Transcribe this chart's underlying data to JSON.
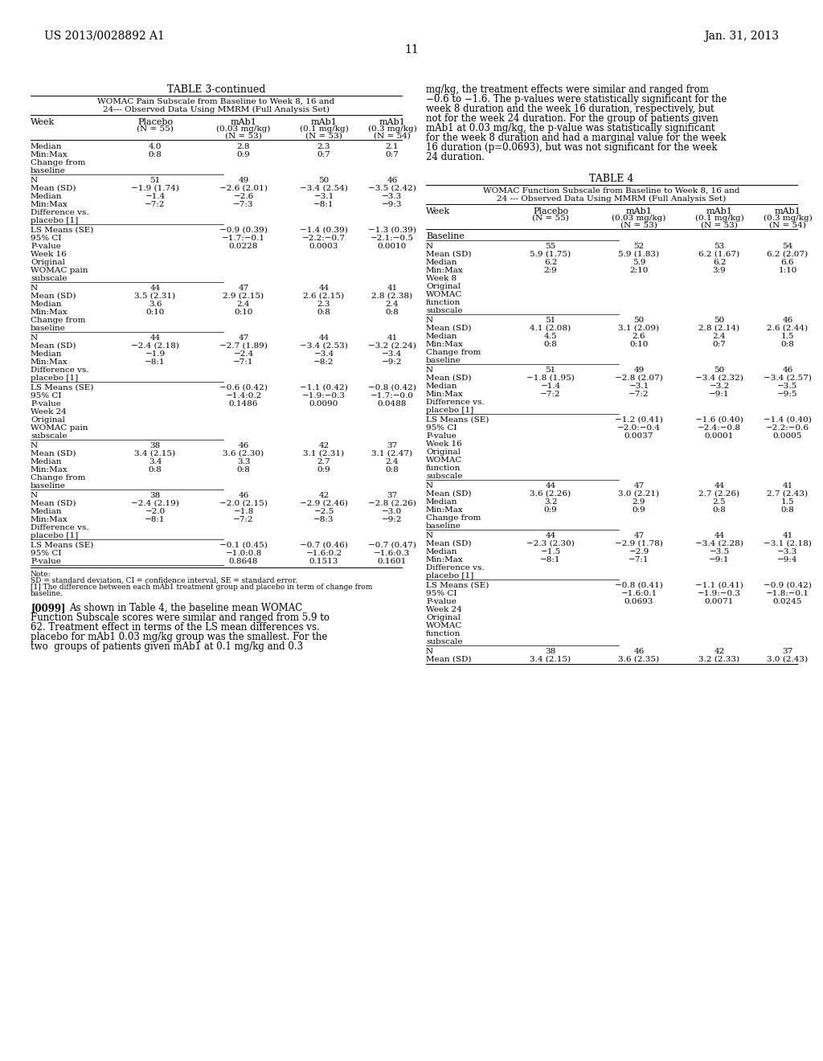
{
  "page_header_left": "US 2013/0028892 A1",
  "page_header_right": "Jan. 31, 2013",
  "page_number": "11",
  "bg_color": "#ffffff",
  "table3_title": "TABLE 3-continued",
  "table3_subtitle1": "WOMAC Pain Subscale from Baseline to Week 8, 16 and",
  "table3_subtitle2": "24--- Observed Data Using MMRM (Full Analysis Set)",
  "table3_sections": [
    {
      "rows": [
        [
          "Median",
          "4.0",
          "2.8",
          "2.3",
          "2.1"
        ],
        [
          "Min:Max",
          "0:8",
          "0:9",
          "0:7",
          "0:7"
        ],
        [
          "Change from",
          "",
          "",
          "",
          ""
        ],
        [
          "baseline",
          "",
          "",
          "",
          ""
        ]
      ],
      "separator_after": true
    },
    {
      "rows": [
        [
          "N",
          "51",
          "49",
          "50",
          "46"
        ],
        [
          "Mean (SD)",
          "−1.9 (1.74)",
          "−2.6 (2.01)",
          "−3.4 (2.54)",
          "−3.5 (2.42)"
        ],
        [
          "Median",
          "−1.4",
          "−2.6",
          "−3.1",
          "−3.3"
        ],
        [
          "Min:Max",
          "−7:2",
          "−7:3",
          "−8:1",
          "−9:3"
        ],
        [
          "Difference vs.",
          "",
          "",
          "",
          ""
        ],
        [
          "placebo [1]",
          "",
          "",
          "",
          ""
        ]
      ],
      "separator_after": true
    },
    {
      "rows": [
        [
          "LS Means (SE)",
          "",
          "−0.9 (0.39)",
          "−1.4 (0.39)",
          "−1.3 (0.39)"
        ],
        [
          "95% CI",
          "",
          "−1.7:−0.1",
          "−2.2:−0.7",
          "−2.1:−0.5"
        ],
        [
          "P-value",
          "",
          "0.0228",
          "0.0003",
          "0.0010"
        ],
        [
          "Week 16",
          "",
          "",
          "",
          ""
        ],
        [
          "Original",
          "",
          "",
          "",
          ""
        ],
        [
          "WOMAC pain",
          "",
          "",
          "",
          ""
        ],
        [
          "subscale",
          "",
          "",
          "",
          ""
        ]
      ],
      "separator_after": true
    },
    {
      "rows": [
        [
          "N",
          "44",
          "47",
          "44",
          "41"
        ],
        [
          "Mean (SD)",
          "3.5 (2.31)",
          "2.9 (2.15)",
          "2.6 (2.15)",
          "2.8 (2.38)"
        ],
        [
          "Median",
          "3.6",
          "2.4",
          "2.3",
          "2.4"
        ],
        [
          "Min:Max",
          "0:10",
          "0:10",
          "0:8",
          "0:8"
        ],
        [
          "Change from",
          "",
          "",
          "",
          ""
        ],
        [
          "baseline",
          "",
          "",
          "",
          ""
        ]
      ],
      "separator_after": true
    },
    {
      "rows": [
        [
          "N",
          "44",
          "47",
          "44",
          "41"
        ],
        [
          "Mean (SD)",
          "−2.4 (2.18)",
          "−2.7 (1.89)",
          "−3.4 (2.53)",
          "−3.2 (2.24)"
        ],
        [
          "Median",
          "−1.9",
          "−2.4",
          "−3.4",
          "−3.4"
        ],
        [
          "Min:Max",
          "−8:1",
          "−7:1",
          "−8:2",
          "−9:2"
        ],
        [
          "Difference vs.",
          "",
          "",
          "",
          ""
        ],
        [
          "placebo [1]",
          "",
          "",
          "",
          ""
        ]
      ],
      "separator_after": true
    },
    {
      "rows": [
        [
          "LS Means (SE)",
          "",
          "−0.6 (0.42)",
          "−1.1 (0.42)",
          "−0.8 (0.42)"
        ],
        [
          "95% CI",
          "",
          "−1.4:0.2",
          "−1.9:−0.3",
          "−1.7:−0.0"
        ],
        [
          "P-value",
          "",
          "0.1486",
          "0.0090",
          "0.0488"
        ],
        [
          "Week 24",
          "",
          "",
          "",
          ""
        ],
        [
          "Original",
          "",
          "",
          "",
          ""
        ],
        [
          "WOMAC pain",
          "",
          "",
          "",
          ""
        ],
        [
          "subscale",
          "",
          "",
          "",
          ""
        ]
      ],
      "separator_after": true
    },
    {
      "rows": [
        [
          "N",
          "38",
          "46",
          "42",
          "37"
        ],
        [
          "Mean (SD)",
          "3.4 (2.15)",
          "3.6 (2.30)",
          "3.1 (2.31)",
          "3.1 (2.47)"
        ],
        [
          "Median",
          "3.4",
          "3.3",
          "2.7",
          "2.4"
        ],
        [
          "Min:Max",
          "0:8",
          "0:8",
          "0:9",
          "0:8"
        ],
        [
          "Change from",
          "",
          "",
          "",
          ""
        ],
        [
          "baseline",
          "",
          "",
          "",
          ""
        ]
      ],
      "separator_after": true
    },
    {
      "rows": [
        [
          "N",
          "38",
          "46",
          "42",
          "37"
        ],
        [
          "Mean (SD)",
          "−2.4 (2.19)",
          "−2.0 (2.15)",
          "−2.9 (2.46)",
          "−2.8 (2.26)"
        ],
        [
          "Median",
          "−2.0",
          "−1.8",
          "−2.5",
          "−3.0"
        ],
        [
          "Min:Max",
          "−8:1",
          "−7:2",
          "−8:3",
          "−9:2"
        ],
        [
          "Difference vs.",
          "",
          "",
          "",
          ""
        ],
        [
          "placebo [1]",
          "",
          "",
          "",
          ""
        ]
      ],
      "separator_after": true
    },
    {
      "rows": [
        [
          "LS Means (SE)",
          "",
          "−0.1 (0.45)",
          "−0.7 (0.46)",
          "−0.7 (0.47)"
        ],
        [
          "95% CI",
          "",
          "−1.0:0.8",
          "−1.6:0.2",
          "−1.6:0.3"
        ],
        [
          "P-value",
          "",
          "0.8648",
          "0.1513",
          "0.1601"
        ]
      ],
      "separator_after": true
    }
  ],
  "table3_note_lines": [
    "Note:",
    "SD = standard deviation, CI = confidence interval, SE = standard error.",
    "[1] The difference between each mAb1 treatment group and placebo in term of change from",
    "baseline."
  ],
  "table4_title": "TABLE 4",
  "table4_subtitle1": "WOMAC Function Subscale from Baseline to Week 8, 16 and",
  "table4_subtitle2": "24 --- Observed Data Using MMRM (Full Analysis Set)",
  "table4_sections": [
    {
      "label": "Baseline",
      "rows": [
        [
          "N",
          "55",
          "52",
          "53",
          "54"
        ],
        [
          "Mean (SD)",
          "5.9 (1.75)",
          "5.9 (1.83)",
          "6.2 (1.67)",
          "6.2 (2.07)"
        ],
        [
          "Median",
          "6.2",
          "5.9",
          "6.2",
          "6.6"
        ],
        [
          "Min:Max",
          "2:9",
          "2:10",
          "3:9",
          "1:10"
        ],
        [
          "Week 8",
          "",
          "",
          "",
          ""
        ],
        [
          "Original",
          "",
          "",
          "",
          ""
        ],
        [
          "WOMAC",
          "",
          "",
          "",
          ""
        ],
        [
          "function",
          "",
          "",
          "",
          ""
        ],
        [
          "subscale",
          "",
          "",
          "",
          ""
        ]
      ],
      "separator_after": true
    },
    {
      "label": "",
      "rows": [
        [
          "N",
          "51",
          "50",
          "50",
          "46"
        ],
        [
          "Mean (SD)",
          "4.1 (2.08)",
          "3.1 (2.09)",
          "2.8 (2.14)",
          "2.6 (2.44)"
        ],
        [
          "Median",
          "4.5",
          "2.6",
          "2.4",
          "1.5"
        ],
        [
          "Min:Max",
          "0:8",
          "0:10",
          "0:7",
          "0:8"
        ],
        [
          "Change from",
          "",
          "",
          "",
          ""
        ],
        [
          "baseline",
          "",
          "",
          "",
          ""
        ]
      ],
      "separator_after": true
    },
    {
      "label": "",
      "rows": [
        [
          "N",
          "51",
          "49",
          "50",
          "46"
        ],
        [
          "Mean (SD)",
          "−1.8 (1.95)",
          "−2.8 (2.07)",
          "−3.4 (2.32)",
          "−3.4 (2.57)"
        ],
        [
          "Median",
          "−1.4",
          "−3.1",
          "−3.2",
          "−3.5"
        ],
        [
          "Min:Max",
          "−7:2",
          "−7:2",
          "−9:1",
          "−9:5"
        ],
        [
          "Difference vs.",
          "",
          "",
          "",
          ""
        ],
        [
          "placebo [1]",
          "",
          "",
          "",
          ""
        ]
      ],
      "separator_after": true
    },
    {
      "label": "",
      "rows": [
        [
          "LS Means (SE)",
          "",
          "−1.2 (0.41)",
          "−1.6 (0.40)",
          "−1.4 (0.40)"
        ],
        [
          "95% CI",
          "",
          "−2.0:−0.4",
          "−2.4:−0.8",
          "−2.2:−0.6"
        ],
        [
          "P-value",
          "",
          "0.0037",
          "0.0001",
          "0.0005"
        ],
        [
          "Week 16",
          "",
          "",
          "",
          ""
        ],
        [
          "Original",
          "",
          "",
          "",
          ""
        ],
        [
          "WOMAC",
          "",
          "",
          "",
          ""
        ],
        [
          "function",
          "",
          "",
          "",
          ""
        ],
        [
          "subscale",
          "",
          "",
          "",
          ""
        ]
      ],
      "separator_after": true
    },
    {
      "label": "",
      "rows": [
        [
          "N",
          "44",
          "47",
          "44",
          "41"
        ],
        [
          "Mean (SD)",
          "3.6 (2.26)",
          "3.0 (2.21)",
          "2.7 (2.26)",
          "2.7 (2.43)"
        ],
        [
          "Median",
          "3.2",
          "2.9",
          "2.5",
          "1.5"
        ],
        [
          "Min:Max",
          "0:9",
          "0:9",
          "0:8",
          "0:8"
        ],
        [
          "Change from",
          "",
          "",
          "",
          ""
        ],
        [
          "baseline",
          "",
          "",
          "",
          ""
        ]
      ],
      "separator_after": true
    },
    {
      "label": "",
      "rows": [
        [
          "N",
          "44",
          "47",
          "44",
          "41"
        ],
        [
          "Mean (SD)",
          "−2.3 (2.30)",
          "−2.9 (1.78)",
          "−3.4 (2.28)",
          "−3.1 (2.18)"
        ],
        [
          "Median",
          "−1.5",
          "−2.9",
          "−3.5",
          "−3.3"
        ],
        [
          "Min:Max",
          "−8:1",
          "−7:1",
          "−9:1",
          "−9:4"
        ],
        [
          "Difference vs.",
          "",
          "",
          "",
          ""
        ],
        [
          "placebo [1]",
          "",
          "",
          "",
          ""
        ]
      ],
      "separator_after": true
    },
    {
      "label": "",
      "rows": [
        [
          "LS Means (SE)",
          "",
          "−0.8 (0.41)",
          "−1.1 (0.41)",
          "−0.9 (0.42)"
        ],
        [
          "95% CI",
          "",
          "−1.6:0.1",
          "−1.9:−0.3",
          "−1.8:−0.1"
        ],
        [
          "P-value",
          "",
          "0.0693",
          "0.0071",
          "0.0245"
        ],
        [
          "Week 24",
          "",
          "",
          "",
          ""
        ],
        [
          "Original",
          "",
          "",
          "",
          ""
        ],
        [
          "WOMAC",
          "",
          "",
          "",
          ""
        ],
        [
          "function",
          "",
          "",
          "",
          ""
        ],
        [
          "subscale",
          "",
          "",
          "",
          ""
        ]
      ],
      "separator_after": true
    },
    {
      "label": "",
      "rows": [
        [
          "N",
          "38",
          "46",
          "42",
          "37"
        ],
        [
          "Mean (SD)",
          "3.4 (2.15)",
          "3.6 (2.35)",
          "3.2 (2.33)",
          "3.0 (2.43)"
        ]
      ],
      "separator_after": false
    }
  ],
  "paragraph_right_lines": [
    "mg/kg, the treatment effects were similar and ranged from",
    "−0.6 to −1.6. The p-values were statistically significant for the",
    "week 8 duration and the week 16 duration, respectively, but",
    "not for the week 24 duration. For the group of patients given",
    "mAb1 at 0.03 mg/kg, the p-value was statistically significant",
    "for the week 8 duration and had a marginal value for the week",
    "16 duration (p=0.0693), but was not significant for the week",
    "24 duration."
  ],
  "paragraph_bottom_lines": [
    "[0099]   As shown in Table 4, the baseline mean WOMAC",
    "Function Subscale scores were similar and ranged from 5.9 to",
    "62. Treatment effect in terms of the LS mean differences vs.",
    "placebo for mAb1 0.03 mg/kg group was the smallest. For the",
    "two  groups of patients given mAb1 at 0.1 mg/kg and 0.3"
  ]
}
